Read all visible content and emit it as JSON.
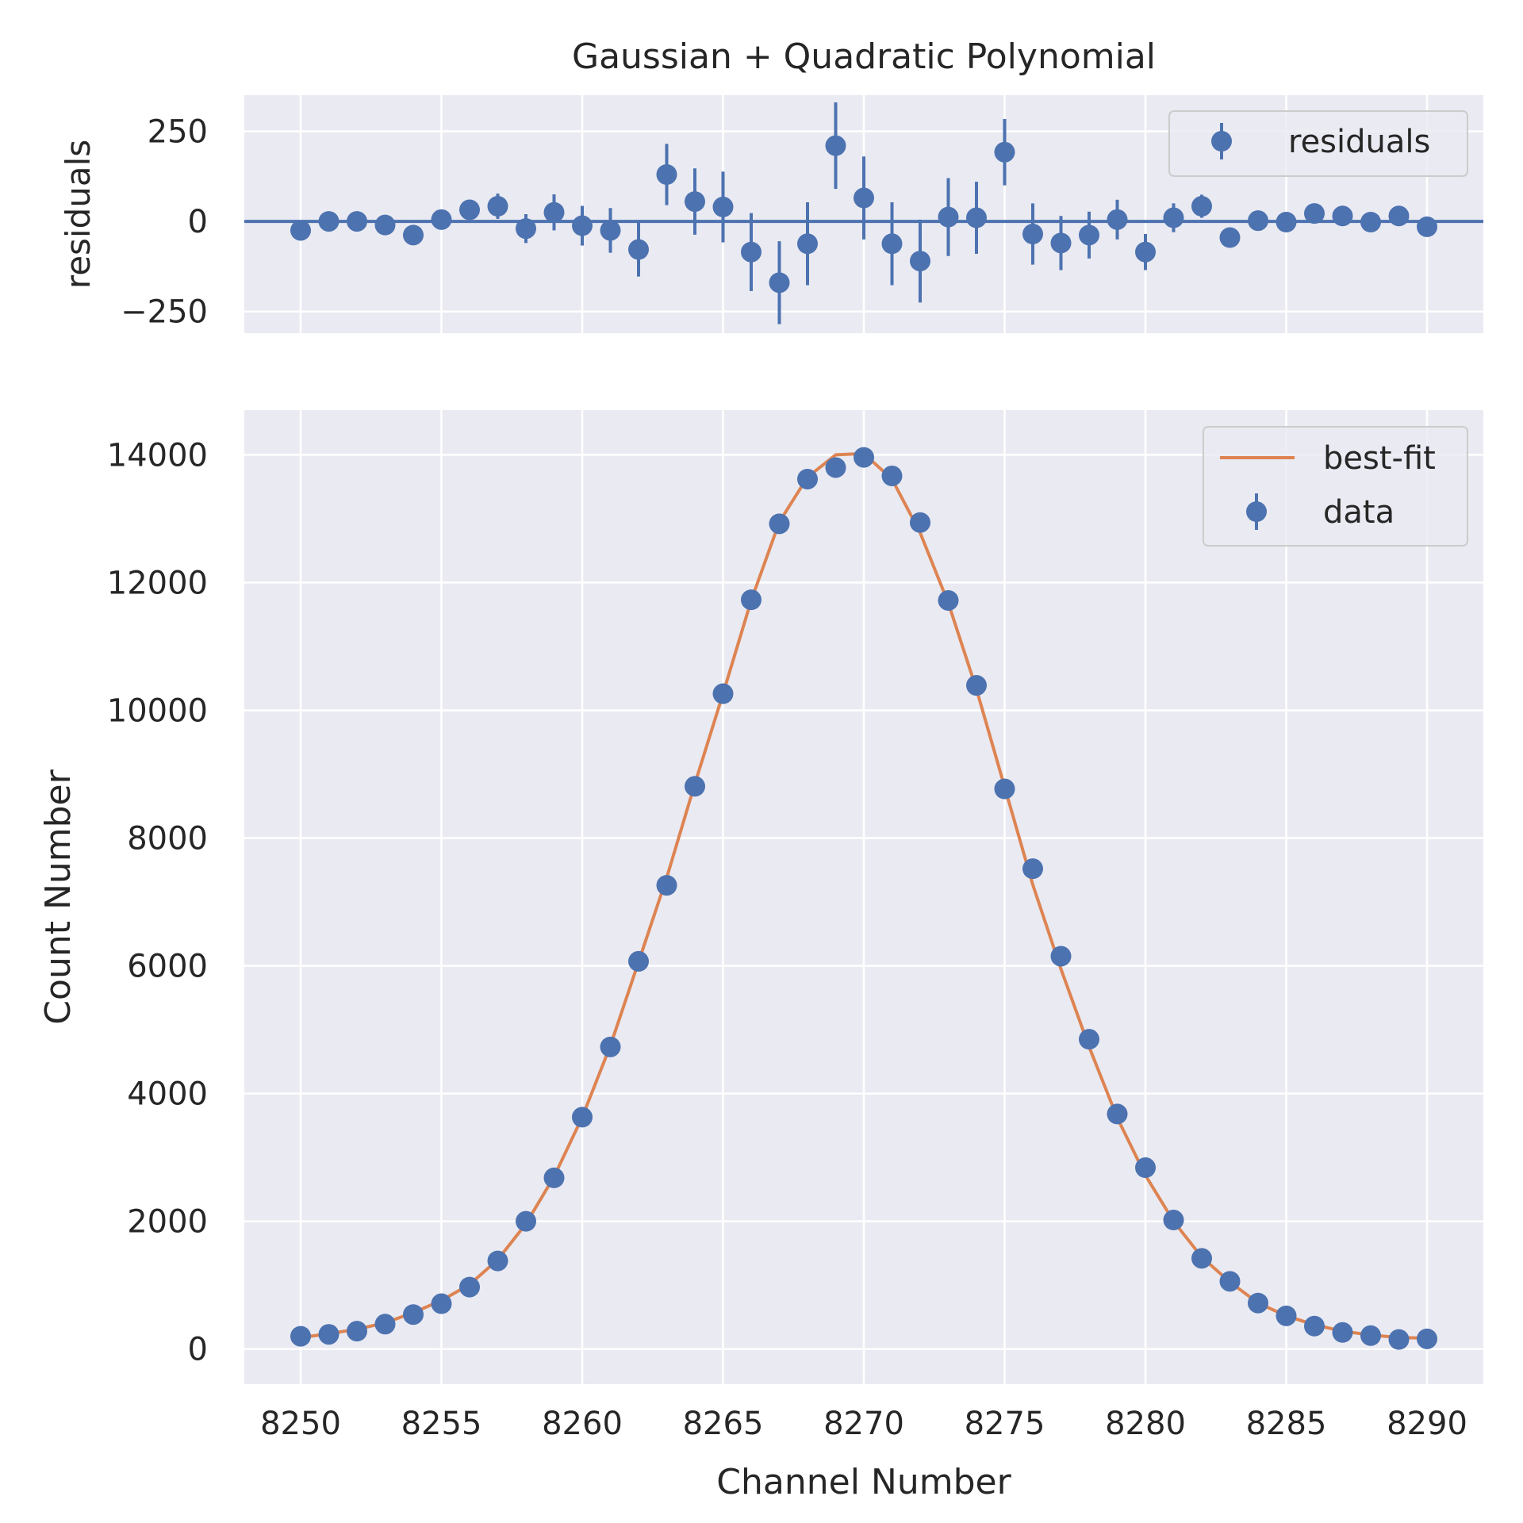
{
  "chart_data": [
    {
      "type": "scatter",
      "panel": "residuals",
      "title": "Gaussian + Quadratic Polynomial",
      "xlabel": "",
      "ylabel": "residuals",
      "xlim": [
        8248,
        8292
      ],
      "ylim": [
        -310,
        350
      ],
      "yticks": [
        -250,
        0,
        250
      ],
      "ytick_labels": [
        "−250",
        "0",
        "250"
      ],
      "xticks": [
        8250,
        8255,
        8260,
        8265,
        8270,
        8275,
        8280,
        8285,
        8290
      ],
      "grid": true,
      "legend": {
        "position": "top-right",
        "entries": [
          "residuals"
        ]
      },
      "reference_line": 0,
      "series": [
        {
          "name": "residuals",
          "x": [
            8250,
            8251,
            8252,
            8253,
            8254,
            8255,
            8256,
            8257,
            8258,
            8259,
            8260,
            8261,
            8262,
            8263,
            8264,
            8265,
            8266,
            8267,
            8268,
            8269,
            8270,
            8271,
            8272,
            8273,
            8274,
            8275,
            8276,
            8277,
            8278,
            8279,
            8280,
            8281,
            8282,
            8283,
            8284,
            8285,
            8286,
            8287,
            8288,
            8289,
            8290
          ],
          "y": [
            -25,
            0,
            0,
            -10,
            -38,
            5,
            32,
            42,
            -20,
            25,
            -12,
            -25,
            -78,
            130,
            55,
            40,
            -85,
            -170,
            -62,
            210,
            65,
            -62,
            -110,
            12,
            10,
            192,
            -35,
            -60,
            -38,
            5,
            -85,
            10,
            42,
            -45,
            2,
            -2,
            22,
            15,
            -2,
            15,
            -15
          ],
          "yerr": [
            15,
            15,
            15,
            15,
            18,
            20,
            25,
            35,
            40,
            50,
            55,
            62,
            75,
            85,
            92,
            98,
            108,
            115,
            115,
            120,
            115,
            115,
            115,
            108,
            100,
            92,
            85,
            75,
            65,
            55,
            50,
            40,
            32,
            25,
            20,
            18,
            15,
            15,
            15,
            15,
            15
          ]
        }
      ]
    },
    {
      "type": "scatter",
      "panel": "main",
      "title": "",
      "xlabel": "Channel Number",
      "ylabel": "Count Number",
      "xlim": [
        8248,
        8292
      ],
      "ylim": [
        -550,
        14700
      ],
      "yticks": [
        0,
        2000,
        4000,
        6000,
        8000,
        10000,
        12000,
        14000
      ],
      "xticks": [
        8250,
        8255,
        8260,
        8265,
        8270,
        8275,
        8280,
        8285,
        8290
      ],
      "grid": true,
      "legend": {
        "position": "top-right",
        "entries": [
          "best-fit",
          "data"
        ]
      },
      "series": [
        {
          "name": "best-fit",
          "kind": "line",
          "x": [
            8250,
            8251,
            8252,
            8253,
            8254,
            8255,
            8256,
            8257,
            8258,
            8259,
            8260,
            8261,
            8262,
            8263,
            8264,
            8265,
            8266,
            8267,
            8268,
            8269,
            8270,
            8271,
            8272,
            8273,
            8274,
            8275,
            8276,
            8277,
            8278,
            8279,
            8280,
            8281,
            8282,
            8283,
            8284,
            8285,
            8286,
            8287,
            8288,
            8289,
            8290
          ],
          "y": [
            180,
            240,
            310,
            410,
            570,
            760,
            1010,
            1400,
            1960,
            2700,
            3630,
            4750,
            6060,
            7380,
            8850,
            10260,
            11720,
            12950,
            13650,
            14000,
            14020,
            13620,
            12780,
            11680,
            10330,
            8800,
            7270,
            5950,
            4730,
            3620,
            2720,
            2000,
            1440,
            1050,
            720,
            520,
            380,
            280,
            220,
            180,
            170
          ]
        },
        {
          "name": "data",
          "kind": "errorbar",
          "x": [
            8250,
            8251,
            8252,
            8253,
            8254,
            8255,
            8256,
            8257,
            8258,
            8259,
            8260,
            8261,
            8262,
            8263,
            8264,
            8265,
            8266,
            8267,
            8268,
            8269,
            8270,
            8271,
            8272,
            8273,
            8274,
            8275,
            8276,
            8277,
            8278,
            8279,
            8280,
            8281,
            8282,
            8283,
            8284,
            8285,
            8286,
            8287,
            8288,
            8289,
            8290
          ],
          "y": [
            200,
            230,
            280,
            390,
            540,
            710,
            970,
            1380,
            2000,
            2680,
            3630,
            4730,
            6070,
            7260,
            8810,
            10260,
            11730,
            12920,
            13620,
            13800,
            13960,
            13670,
            12940,
            11720,
            10390,
            8770,
            7520,
            6150,
            4850,
            3680,
            2840,
            2020,
            1420,
            1060,
            720,
            520,
            360,
            260,
            210,
            150,
            160
          ]
        }
      ]
    }
  ]
}
